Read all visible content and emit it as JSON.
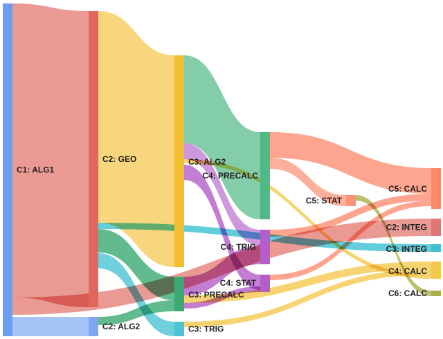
{
  "chart_data": {
    "type": "sankey",
    "title": "",
    "nodes": [
      {
        "id": "C1: ALG1",
        "label": "C1: ALG1",
        "column": 0,
        "color": "#6a9ef0"
      },
      {
        "id": "C2: ALG1",
        "label": "",
        "column": 1,
        "color": "#e2665c"
      },
      {
        "id": "C2: GEO",
        "label": "C2: GEO",
        "column": 1,
        "color": "#f5cf62"
      },
      {
        "id": "C2: ALG2",
        "label": "C2: ALG2",
        "column": 1,
        "color": "#7ea6f2"
      },
      {
        "id": "C3: GEO",
        "label": "",
        "column": 2,
        "color": "#f3bf2e"
      },
      {
        "id": "C3: ALG2",
        "label": "C3: ALG2",
        "column": 2,
        "color": "#f3bf2e"
      },
      {
        "id": "C3: PRECALC",
        "label": "C3: PRECALC",
        "column": 2,
        "color": "#3aaa73"
      },
      {
        "id": "C3: TRIG",
        "label": "C3: TRIG",
        "column": 2,
        "color": "#4cc4d4"
      },
      {
        "id": "C4: PRECALC",
        "label": "C4: PRECALC",
        "column": 3,
        "color": "#4fb987"
      },
      {
        "id": "C4: TRIG",
        "label": "C4: TRIG",
        "column": 3,
        "color": "#b45ec9"
      },
      {
        "id": "C4: STAT",
        "label": "C4: STAT",
        "column": 3,
        "color": "#b45ec9"
      },
      {
        "id": "C5: STAT",
        "label": "C5: STAT",
        "column": 4,
        "color": "#fb9378"
      },
      {
        "id": "C5: CALC",
        "label": "C5: CALC",
        "column": 5,
        "color": "#fd8a68"
      },
      {
        "id": "C2: INTEG",
        "label": "C2: INTEG",
        "column": 5,
        "color": "#df7676"
      },
      {
        "id": "C3: INTEG",
        "label": "C3: INTEG",
        "column": 5,
        "color": "#3cc0d2"
      },
      {
        "id": "C4: CALC",
        "label": "C4: CALC",
        "column": 5,
        "color": "#f5c94e"
      },
      {
        "id": "C6: CALC",
        "label": "C6: CALC",
        "column": 5,
        "color": "#aab04a"
      }
    ],
    "links": [
      {
        "source": "C1: ALG1",
        "target": "C2: ALG1",
        "value": 428,
        "color": "#e57f78"
      },
      {
        "source": "C1: ALG1",
        "target": "C2: INTEG",
        "value": 25,
        "color": "#e57f78"
      },
      {
        "source": "C1: ALG1",
        "target": "C2: ALG2",
        "value": 28,
        "color": "#8fb4f5"
      },
      {
        "source": "C2: ALG1",
        "target": "C2: GEO",
        "value": 428,
        "color": "#e2665c"
      },
      {
        "source": "C2: GEO",
        "target": "C3: GEO",
        "value": 306,
        "color": "#f5cc5e"
      },
      {
        "source": "C2: GEO",
        "target": "C3: INTEG",
        "value": 11,
        "color": "#3cc0d2"
      },
      {
        "source": "C2: GEO",
        "target": "C3: PRECALC",
        "value": 34,
        "color": "#3aaa73"
      },
      {
        "source": "C2: GEO",
        "target": "C3: TRIG",
        "value": 22,
        "color": "#4cc4d4"
      },
      {
        "source": "C2: ALG2",
        "target": "C3: PRECALC",
        "value": 16,
        "color": "#3aaa73"
      },
      {
        "source": "C3: GEO",
        "target": "C4: PRECALC",
        "value": 126,
        "color": "#65c194"
      },
      {
        "source": "C3: GEO",
        "target": "C4: TRIG",
        "value": 23,
        "color": "#c27fd3"
      },
      {
        "source": "C3: GEO",
        "target": "C4: CALC",
        "value": 6,
        "color": "#f5c94e"
      },
      {
        "source": "C3: GEO",
        "target": "C4: STAT",
        "value": 22,
        "color": "#b45ec9"
      },
      {
        "source": "C3: PRECALC",
        "target": "C4: TRIG",
        "value": 27,
        "color": "#b45ec9"
      },
      {
        "source": "C3: PRECALC",
        "target": "C4: CALC",
        "value": 11,
        "color": "#f5c94e"
      },
      {
        "source": "C3: PRECALC",
        "target": "C4: STAT",
        "value": 3,
        "color": "#b45ec9"
      },
      {
        "source": "C3: TRIG",
        "target": "C4: CALC",
        "value": 8,
        "color": "#f5c94e"
      },
      {
        "source": "C4: PRECALC",
        "target": "C5: CALC",
        "value": 37,
        "color": "#fd8f72"
      },
      {
        "source": "C4: PRECALC",
        "target": "C5: STAT",
        "value": 16,
        "color": "#fb9b82"
      },
      {
        "source": "C4: TRIG",
        "target": "C5: CALC",
        "value": 10,
        "color": "#fd8f72"
      },
      {
        "source": "C4: STAT",
        "target": "C5: CALC",
        "value": 8,
        "color": "#fd8f72"
      },
      {
        "source": "C5: STAT",
        "target": "C6: CALC",
        "value": 8,
        "color": "#aab04a"
      }
    ]
  }
}
